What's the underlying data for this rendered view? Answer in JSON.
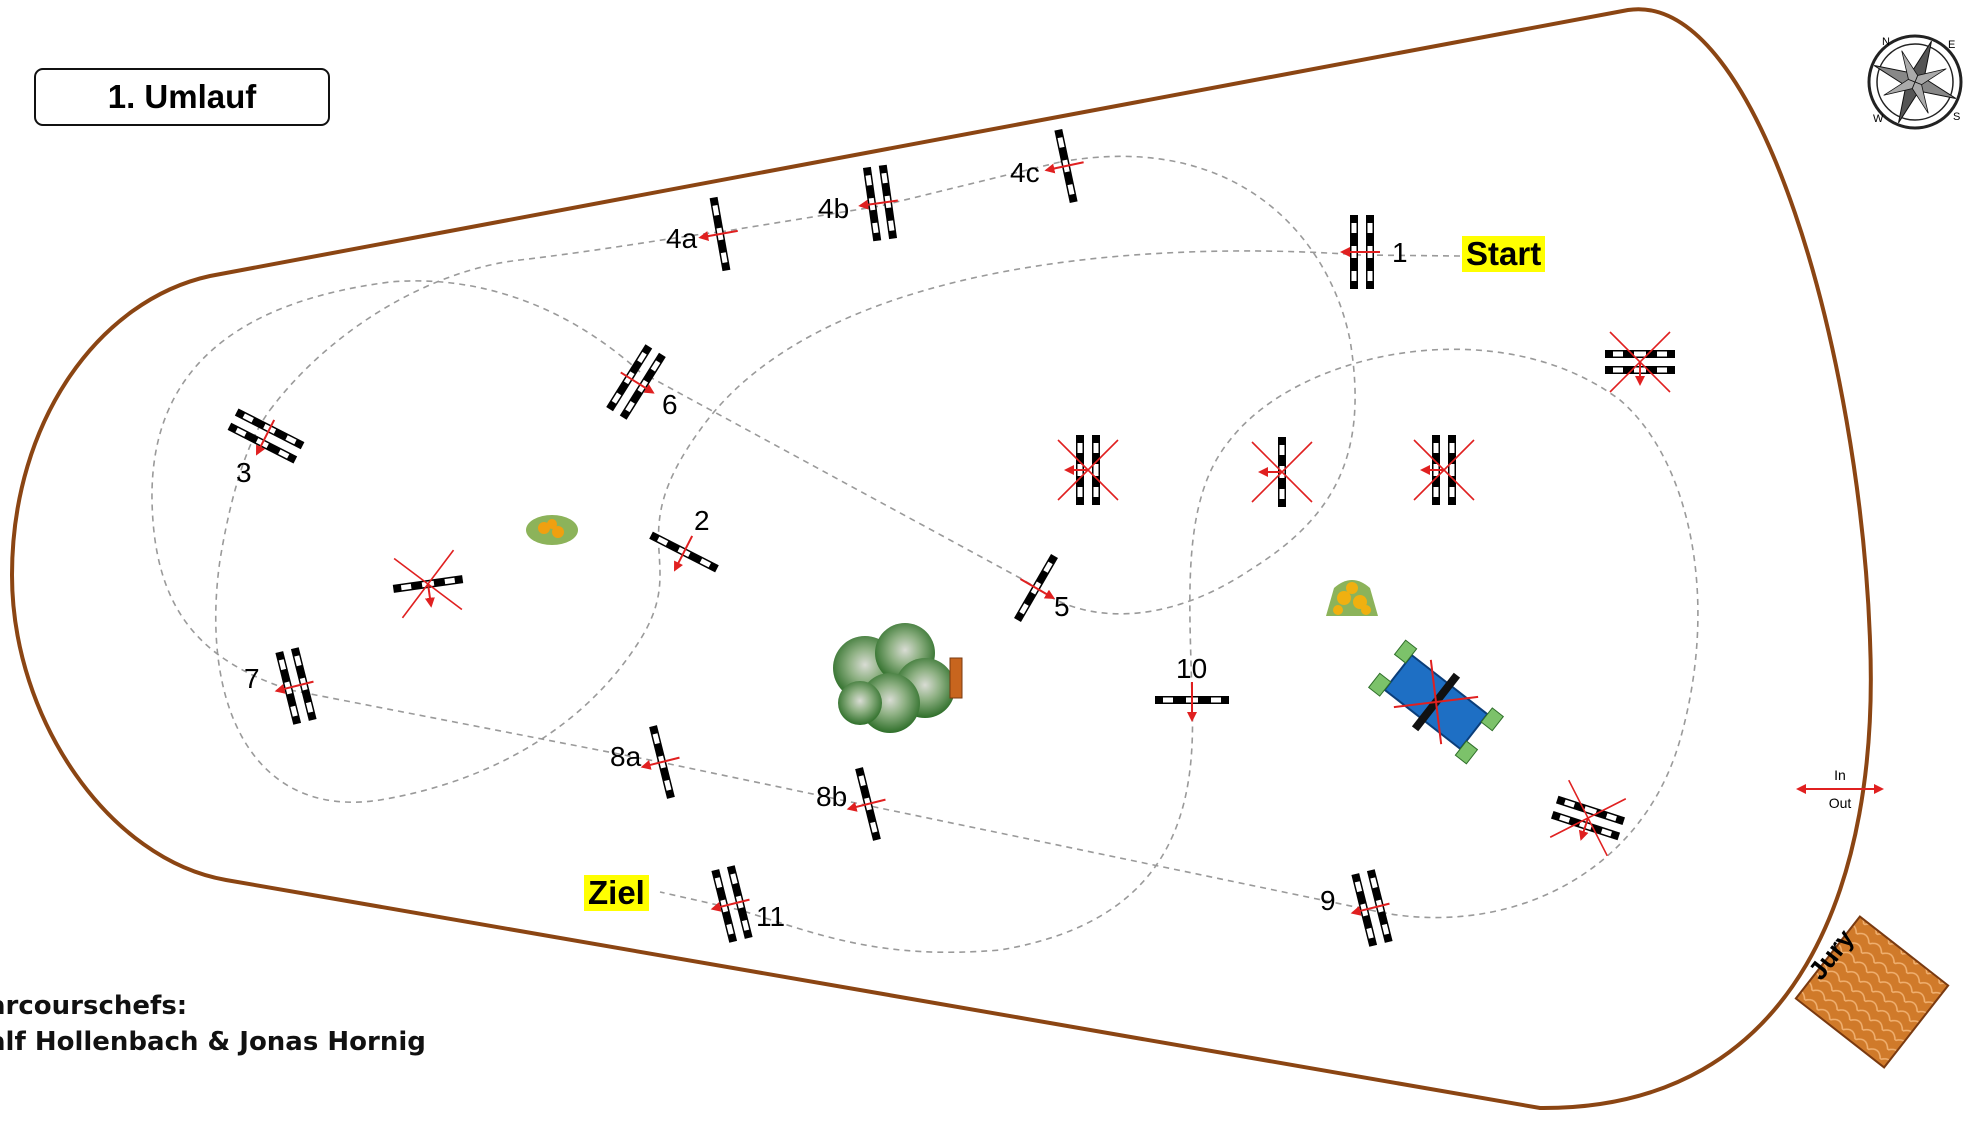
{
  "title": "1. Umlauf",
  "start_label": "Start",
  "finish_label": "Ziel",
  "credits": {
    "heading": "arcourschefs:",
    "names": "alf Hollenbach & Jonas Hornig"
  },
  "in_out": {
    "in": "In",
    "out": "Out"
  },
  "jury_label": "Jury",
  "compass": {
    "n": "N",
    "e": "E",
    "s": "S",
    "w": "W"
  },
  "fences": [
    {
      "id": "1",
      "label": "1",
      "type": "oxer",
      "active": true
    },
    {
      "id": "2",
      "label": "2",
      "type": "vertical",
      "active": true
    },
    {
      "id": "3",
      "label": "3",
      "type": "oxer",
      "active": true
    },
    {
      "id": "4a",
      "label": "4a",
      "type": "vertical",
      "active": true
    },
    {
      "id": "4b",
      "label": "4b",
      "type": "oxer",
      "active": true
    },
    {
      "id": "4c",
      "label": "4c",
      "type": "vertical",
      "active": true
    },
    {
      "id": "5",
      "label": "5",
      "type": "vertical",
      "active": true
    },
    {
      "id": "6",
      "label": "6",
      "type": "oxer",
      "active": true
    },
    {
      "id": "7",
      "label": "7",
      "type": "oxer",
      "active": true
    },
    {
      "id": "8a",
      "label": "8a",
      "type": "vertical",
      "active": true
    },
    {
      "id": "8b",
      "label": "8b",
      "type": "vertical",
      "active": true
    },
    {
      "id": "9",
      "label": "9",
      "type": "oxer",
      "active": true
    },
    {
      "id": "10",
      "label": "10",
      "type": "vertical",
      "active": true
    },
    {
      "id": "11",
      "label": "11",
      "type": "oxer",
      "active": true
    }
  ],
  "unused_fences": 8,
  "colors": {
    "arena_border": "#8b4513",
    "track_line": "#9a9a9a",
    "direction_arrow": "#e02020",
    "highlight": "#ffff00",
    "water": "#1e6fc4",
    "jury_roof": "#c8651e"
  }
}
